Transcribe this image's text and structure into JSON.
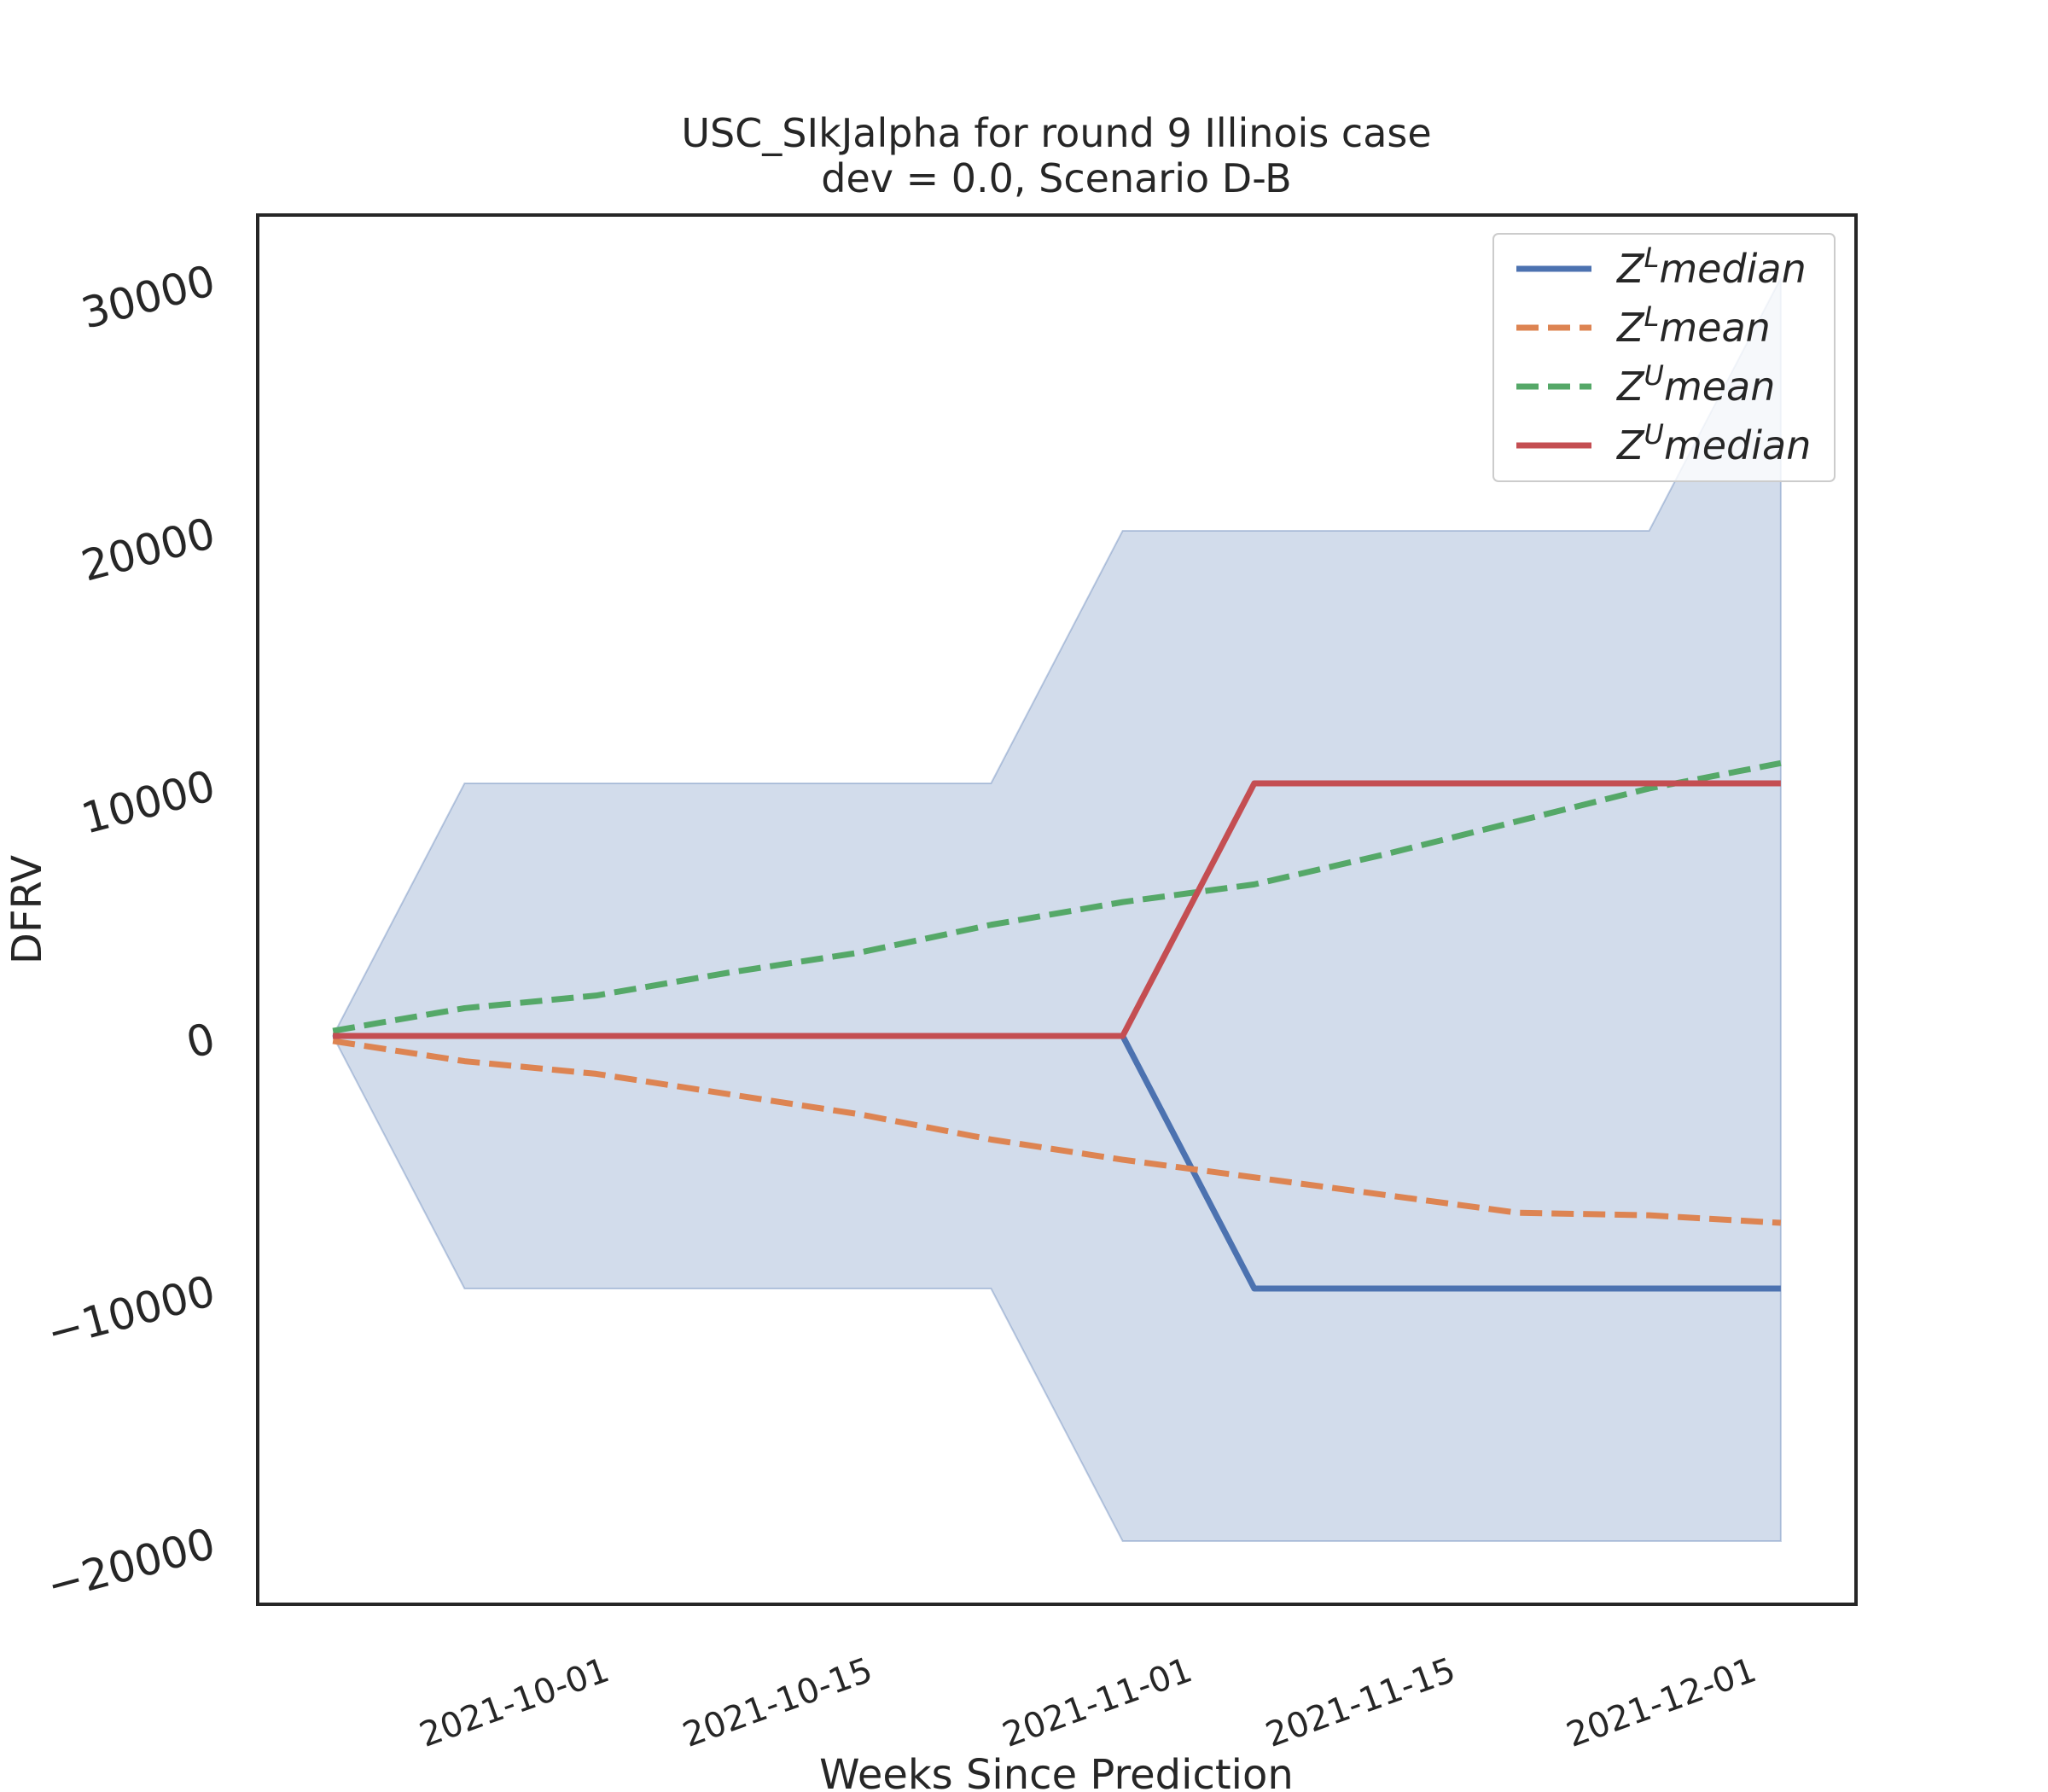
{
  "chart_data": {
    "type": "line",
    "title": "USC_SIkJalpha for round 9 Illinois case",
    "subtitle": "dev = 0.0, Scenario D-B",
    "xlabel": "Weeks Since Prediction",
    "ylabel": "DFRV",
    "x": [
      "2021-09-18",
      "2021-09-25",
      "2021-10-02",
      "2021-10-09",
      "2021-10-16",
      "2021-10-23",
      "2021-10-30",
      "2021-11-06",
      "2021-11-13",
      "2021-11-20",
      "2021-11-27",
      "2021-12-04"
    ],
    "x_ticks": [
      "2021-10-01",
      "2021-10-15",
      "2021-11-01",
      "2021-11-15",
      "2021-12-01"
    ],
    "xlim": [
      "2021-09-14",
      "2021-12-08"
    ],
    "ylim": [
      -22500,
      32500
    ],
    "y_ticks": [
      -20000,
      -10000,
      0,
      10000,
      20000,
      30000
    ],
    "y_tick_labels": [
      "−20000",
      "−10000",
      "0",
      "10000",
      "20000",
      "30000"
    ],
    "band": {
      "color": "#4c72b0",
      "opacity": 0.25,
      "lower": [
        0,
        -10000,
        -10000,
        -10000,
        -10000,
        -10000,
        -20000,
        -20000,
        -20000,
        -20000,
        -20000,
        -20000
      ],
      "upper": [
        0,
        10000,
        10000,
        10000,
        10000,
        10000,
        20000,
        20000,
        20000,
        20000,
        20000,
        30000
      ]
    },
    "series": [
      {
        "name": "Z^L median",
        "base": "Z",
        "sup": "L",
        "stat": "median",
        "color": "#4c72b0",
        "dash": "solid",
        "values": [
          0,
          0,
          0,
          0,
          0,
          0,
          0,
          -10000,
          -10000,
          -10000,
          -10000,
          -10000
        ]
      },
      {
        "name": "Z^L mean",
        "base": "Z",
        "sup": "L",
        "stat": "mean",
        "color": "#dd8452",
        "dash": "dashed",
        "values": [
          -200,
          -1000,
          -1500,
          -2300,
          -3100,
          -4100,
          -4900,
          -5600,
          -6300,
          -7000,
          -7100,
          -7400
        ]
      },
      {
        "name": "Z^U mean",
        "base": "Z",
        "sup": "U",
        "stat": "mean",
        "color": "#55a868",
        "dash": "dashed",
        "values": [
          200,
          1100,
          1600,
          2500,
          3300,
          4400,
          5300,
          6000,
          7200,
          8500,
          9800,
          10800
        ]
      },
      {
        "name": "Z^U median",
        "base": "Z",
        "sup": "U",
        "stat": "median",
        "color": "#c44e52",
        "dash": "solid",
        "values": [
          0,
          0,
          0,
          0,
          0,
          0,
          0,
          10000,
          10000,
          10000,
          10000,
          10000
        ]
      }
    ],
    "legend": "top-right",
    "grid": false
  }
}
